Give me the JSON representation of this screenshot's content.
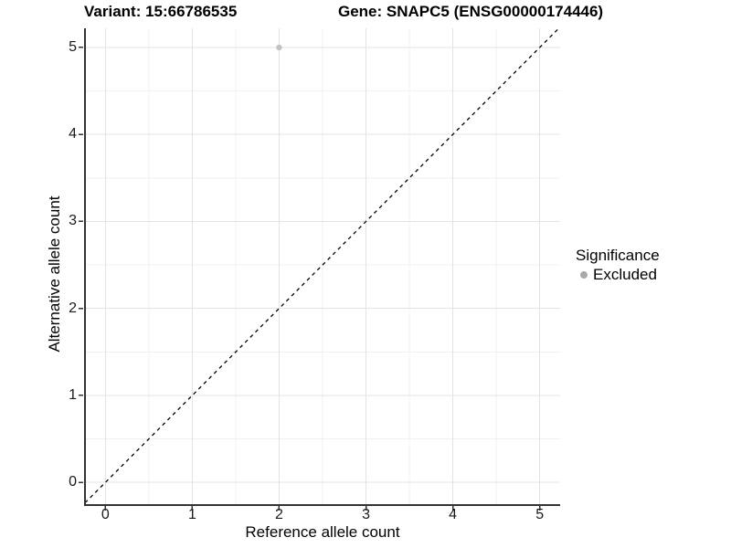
{
  "titles": {
    "variant": "Variant: 15:66786535",
    "gene": "Gene: SNAPC5 (ENSG00000174446)"
  },
  "chart_data": {
    "type": "scatter",
    "titles": [
      "Variant: 15:66786535",
      "Gene: SNAPC5 (ENSG00000174446)"
    ],
    "xlabel": "Reference allele count",
    "ylabel": "Alternative allele count",
    "xlim": [
      -0.235,
      5.235
    ],
    "ylim": [
      -0.25,
      5.22
    ],
    "x_ticks": [
      0,
      1,
      2,
      3,
      4,
      5
    ],
    "y_ticks": [
      0,
      1,
      2,
      3,
      4,
      5
    ],
    "grid": {
      "major": true,
      "minor": true
    },
    "identity_line": {
      "slope": 1,
      "intercept": 0,
      "style": "dashed",
      "color": "#000000"
    },
    "series": [
      {
        "name": "Excluded",
        "color": "#c2c2c2",
        "points": [
          {
            "x": 2,
            "y": 5
          }
        ]
      }
    ],
    "legend": {
      "title": "Significance",
      "position": "right",
      "items": [
        {
          "label": "Excluded",
          "color": "#a9a9a9"
        }
      ]
    }
  },
  "colors": {
    "background": "#ffffff",
    "grid_major": "#e3e3e3",
    "grid_minor": "#f0f0f0",
    "axis_line": "#333333",
    "tick_mark": "#333333"
  }
}
